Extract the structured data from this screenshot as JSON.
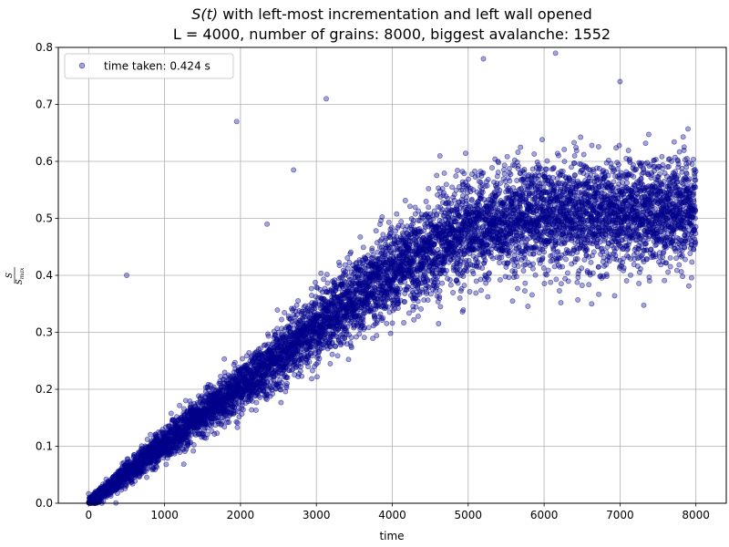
{
  "chart_data": {
    "type": "scatter",
    "title_math": "S(t)",
    "title_line1_rest": " with left-most incrementation and left wall opened",
    "title_line2": "L = 4000, number of grains: 8000, biggest avalanche: 1552",
    "xlabel": "time",
    "ylabel_numerator": "S",
    "ylabel_denominator": "S",
    "ylabel_subscript": "max",
    "xlim": [
      -400,
      8400
    ],
    "ylim": [
      0,
      0.8
    ],
    "xticks": [
      0,
      1000,
      2000,
      3000,
      4000,
      5000,
      6000,
      7000,
      8000
    ],
    "yticks": [
      0.0,
      0.1,
      0.2,
      0.3,
      0.4,
      0.5,
      0.6,
      0.7,
      0.8
    ],
    "grid": true,
    "legend_position": "top-left",
    "series": [
      {
        "name": "time taken: 0.424 s",
        "color": "#00008b",
        "alpha": 0.35,
        "n_points": 8000,
        "trend": [
          [
            0,
            0.0
          ],
          [
            1000,
            0.105
          ],
          [
            2000,
            0.205
          ],
          [
            3000,
            0.31
          ],
          [
            4000,
            0.41
          ],
          [
            5000,
            0.48
          ],
          [
            6000,
            0.505
          ],
          [
            7000,
            0.51
          ],
          [
            8000,
            0.51
          ]
        ],
        "outliers": [
          [
            500,
            0.4
          ],
          [
            1950,
            0.67
          ],
          [
            3130,
            0.71
          ],
          [
            2700,
            0.585
          ],
          [
            2350,
            0.49
          ],
          [
            5200,
            0.78
          ],
          [
            6150,
            0.79
          ],
          [
            7000,
            0.74
          ]
        ]
      }
    ]
  }
}
